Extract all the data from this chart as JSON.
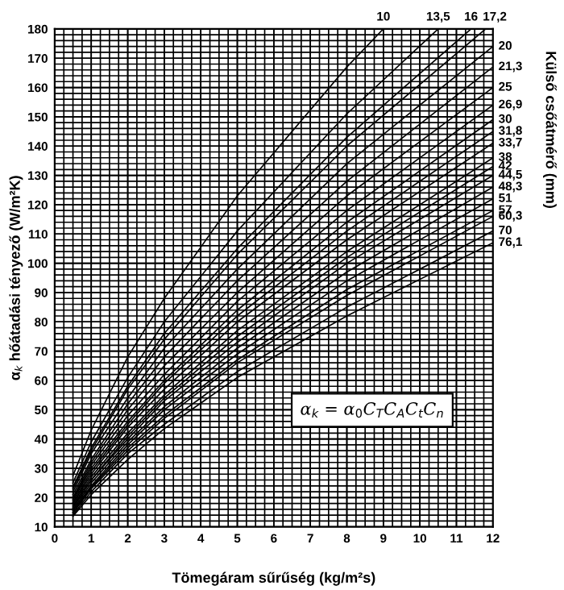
{
  "chart_data": {
    "type": "line",
    "xlabel": "Tömegáram sűrűség (kg/m²s)",
    "ylabel": "α$_{k}$ hőátadási tényező (W/m²K)",
    "y2label": "Külső csőátmérő (mm)",
    "annotations": [
      "α$_{k}$ = α$_{0}$C$_{T}$C$_{A}$C$_{t}$C$_{n}$"
    ],
    "xlim": [
      0,
      12
    ],
    "xticks": [
      0,
      1,
      2,
      3,
      4,
      5,
      6,
      7,
      8,
      9,
      10,
      11,
      12
    ],
    "ylim": [
      10,
      180
    ],
    "yticks": [
      10,
      20,
      30,
      40,
      50,
      60,
      70,
      80,
      90,
      100,
      110,
      120,
      130,
      140,
      150,
      160,
      170,
      180
    ],
    "grid": true,
    "legend": false,
    "marker": "none",
    "line_style": "solid",
    "series": [
      {
        "name": "10",
        "color": "#000000",
        "x": [
          0.5,
          1,
          2,
          3,
          5,
          8,
          9.0
        ],
        "values": [
          27.5,
          43,
          68,
          88,
          123,
          167,
          180
        ]
      },
      {
        "name": "13,5",
        "color": "#000000",
        "x": [
          0.5,
          1,
          2,
          3,
          5,
          8,
          10.5
        ],
        "values": [
          25,
          39,
          61,
          80,
          111,
          151,
          180
        ]
      },
      {
        "name": "16",
        "color": "#000000",
        "x": [
          0.5,
          1,
          2,
          3,
          5,
          8,
          11.4
        ],
        "values": [
          23.6,
          37,
          58,
          76,
          105,
          143,
          180
        ]
      },
      {
        "name": "17,2",
        "color": "#000000",
        "x": [
          0.5,
          1,
          2,
          3,
          5,
          8,
          11.8
        ],
        "values": [
          23,
          36,
          57,
          74,
          103,
          140,
          180
        ]
      },
      {
        "name": "20",
        "color": "#000000",
        "x": [
          0.5,
          1,
          2,
          3,
          5,
          8,
          12
        ],
        "values": [
          22,
          35,
          54,
          71,
          98,
          134,
          174
        ]
      },
      {
        "name": "21,3",
        "color": "#000000",
        "x": [
          0.5,
          1,
          2,
          3,
          5,
          8,
          12
        ],
        "values": [
          21,
          33,
          52,
          68,
          94,
          128,
          167
        ]
      },
      {
        "name": "25",
        "color": "#000000",
        "x": [
          0.5,
          1,
          2,
          3,
          5,
          8,
          12
        ],
        "values": [
          20,
          32,
          50,
          65,
          90,
          123,
          160
        ]
      },
      {
        "name": "26,9",
        "color": "#000000",
        "x": [
          0.5,
          1,
          2,
          3,
          5,
          8,
          12
        ],
        "values": [
          19.5,
          31,
          48,
          62,
          87,
          118,
          154
        ]
      },
      {
        "name": "30",
        "color": "#000000",
        "x": [
          0.5,
          1,
          2,
          3,
          5,
          8,
          12
        ],
        "values": [
          19,
          30,
          46,
          60,
          84,
          114,
          149
        ]
      },
      {
        "name": "31,8",
        "color": "#000000",
        "x": [
          0.5,
          1,
          2,
          3,
          5,
          8,
          12
        ],
        "values": [
          18.3,
          29,
          45,
          59,
          82,
          111,
          145
        ]
      },
      {
        "name": "33,7",
        "color": "#000000",
        "x": [
          0.5,
          1,
          2,
          3,
          5,
          8,
          12
        ],
        "values": [
          17.8,
          28,
          44,
          57,
          80,
          108,
          141
        ]
      },
      {
        "name": "38",
        "color": "#000000",
        "x": [
          0.5,
          1,
          2,
          3,
          5,
          8,
          12
        ],
        "values": [
          17.2,
          27,
          42,
          55,
          77,
          104,
          136
        ]
      },
      {
        "name": "42",
        "color": "#000000",
        "x": [
          0.5,
          1,
          2,
          3,
          5,
          8,
          12
        ],
        "values": [
          16.8,
          26,
          41,
          54,
          75,
          102,
          133
        ]
      },
      {
        "name": "44,5",
        "color": "#000000",
        "x": [
          0.5,
          1,
          2,
          3,
          5,
          8,
          12
        ],
        "values": [
          16.4,
          26,
          40,
          53,
          73,
          100,
          130
        ]
      },
      {
        "name": "48,3",
        "color": "#000000",
        "x": [
          0.5,
          1,
          2,
          3,
          5,
          8,
          12
        ],
        "values": [
          15.9,
          25,
          39,
          51,
          71,
          97,
          126
        ]
      },
      {
        "name": "51",
        "color": "#000000",
        "x": [
          0.5,
          1,
          2,
          3,
          5,
          8,
          12
        ],
        "values": [
          15.5,
          24,
          38,
          50,
          69,
          94,
          122
        ]
      },
      {
        "name": "57",
        "color": "#000000",
        "x": [
          0.5,
          1,
          2,
          3,
          5,
          8,
          12
        ],
        "values": [
          15,
          23.5,
          37,
          48,
          67,
          91,
          118
        ]
      },
      {
        "name": "60,3",
        "color": "#000000",
        "x": [
          0.5,
          1,
          2,
          3,
          5,
          8,
          12
        ],
        "values": [
          14.7,
          23,
          36,
          47,
          66,
          89,
          116
        ]
      },
      {
        "name": "70",
        "color": "#000000",
        "x": [
          0.5,
          1,
          2,
          3,
          5,
          8,
          12
        ],
        "values": [
          14.1,
          22,
          35,
          45,
          63,
          85,
          111
        ]
      },
      {
        "name": "76,1",
        "color": "#000000",
        "x": [
          0.5,
          1,
          2,
          3,
          5,
          8,
          12
        ],
        "values": [
          13.6,
          21,
          33,
          43.5,
          61,
          82,
          107
        ]
      }
    ]
  }
}
